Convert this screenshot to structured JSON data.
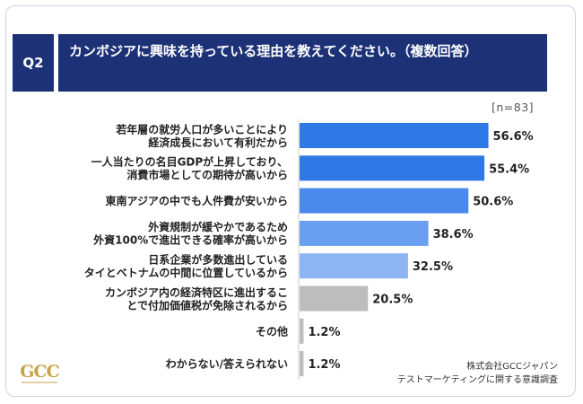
{
  "header": {
    "q_label": "Q2",
    "title": "カンボジアに興味を持っている理由を教えてください。（複数回答）"
  },
  "sample_label": "[n=83]",
  "footer": {
    "line1": "株式会社GCCジャパン",
    "line2": "テストマーケティングに関する意識調査"
  },
  "logo": {
    "text": "GCC"
  },
  "colors": {
    "header": "#1d3276",
    "strong": "#2f79e6",
    "medium": "#6a9ef1",
    "light": "#8db5f3",
    "gray": "#bdbdbd"
  },
  "chart_data": {
    "type": "bar",
    "orientation": "horizontal",
    "categories": [
      [
        "若年層の就労人口が多いことにより",
        "経済成長において有利だから"
      ],
      [
        "一人当たりの名目GDPが上昇しており、",
        "消費市場としての期待が高いから"
      ],
      [
        "東南アジアの中でも人件費が安いから"
      ],
      [
        "外資規制が緩やかであるため",
        "外資100%で進出できる確率が高いから"
      ],
      [
        "日系企業が多数進出している",
        "タイとベトナムの中間に位置しているから"
      ],
      [
        "カンボジア内の経済特区に進出するこ",
        "とで付加価値税が免除されるから"
      ],
      [
        "その他"
      ],
      [
        "わからない/答えられない"
      ]
    ],
    "values": [
      56.6,
      55.4,
      50.6,
      38.6,
      32.5,
      20.5,
      1.2,
      1.2
    ],
    "value_labels": [
      "56.6%",
      "55.4%",
      "50.6%",
      "38.6%",
      "32.5%",
      "20.5%",
      "1.2%",
      "1.2%"
    ],
    "bar_colors": [
      "#2f79e6",
      "#2f79e6",
      "#4a89ec",
      "#6a9ef1",
      "#8db5f3",
      "#bdbdbd",
      "#bdbdbd",
      "#bdbdbd"
    ],
    "unit": "%"
  }
}
